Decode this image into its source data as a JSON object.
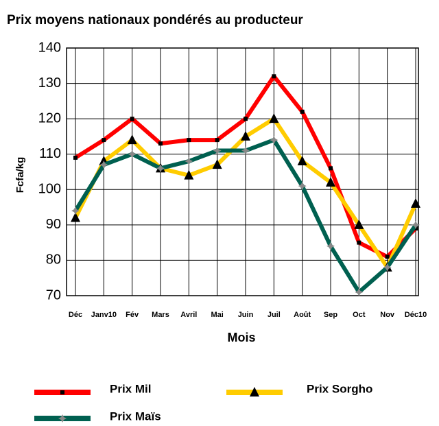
{
  "chart_data": {
    "type": "line",
    "title": "Prix moyens nationaux pondérés au producteur",
    "x_label": "Mois",
    "y_label": "Fcfa/kg",
    "categories": [
      "Déc",
      "Janv10",
      "Fév",
      "Mars",
      "Avril",
      "Mai",
      "Juin",
      "Juil",
      "Août",
      "Sep",
      "Oct",
      "Nov",
      "Déc10"
    ],
    "series": [
      {
        "name": "Prix Mil",
        "color": "#ff0000",
        "marker": "square",
        "values": [
          109,
          114,
          120,
          113,
          114,
          114,
          120,
          132,
          122,
          106,
          85,
          81,
          89
        ]
      },
      {
        "name": "Prix Sorgho",
        "color": "#ffcc00",
        "marker": "triangle",
        "values": [
          92,
          108,
          114,
          106,
          104,
          107,
          115,
          120,
          108,
          102,
          90,
          78,
          96
        ]
      },
      {
        "name": "Prix Maïs",
        "color": "#006050",
        "marker": "star",
        "values": [
          94,
          107,
          110,
          106,
          108,
          111,
          111,
          114,
          101,
          84,
          71,
          78,
          90
        ]
      }
    ],
    "ylim": [
      70,
      140
    ],
    "yticks": [
      70,
      80,
      90,
      100,
      110,
      120,
      130,
      140
    ],
    "grid": true
  }
}
